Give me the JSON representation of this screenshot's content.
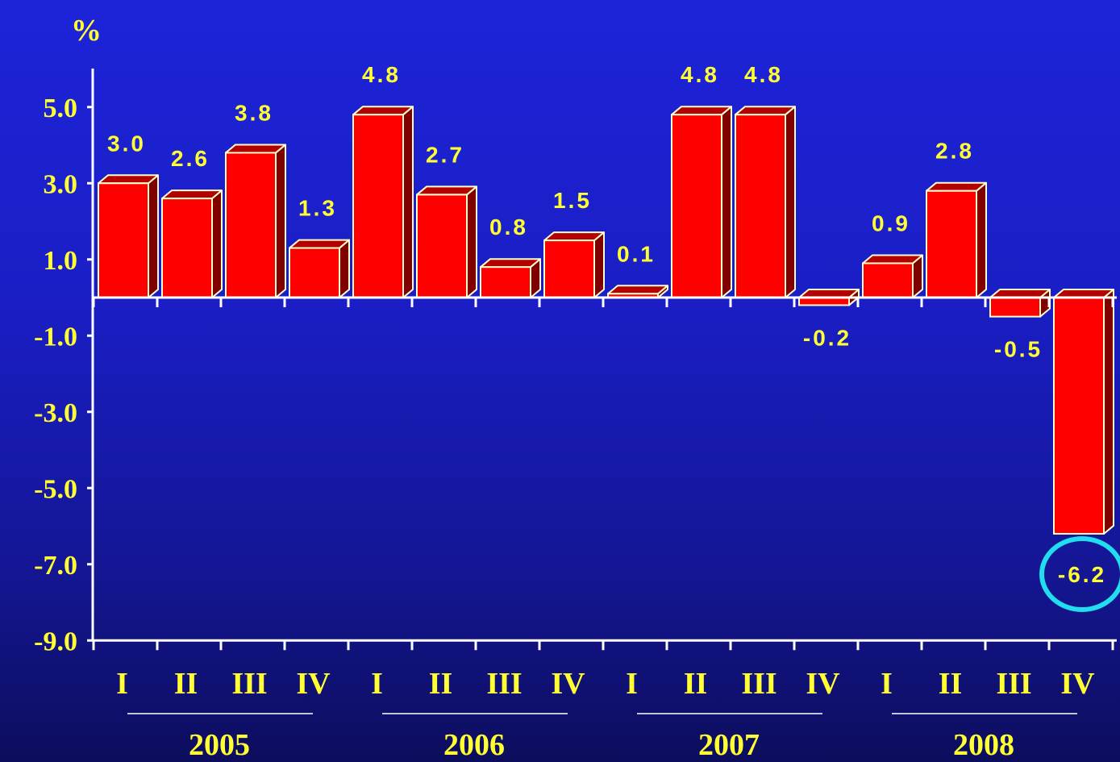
{
  "chart_data": {
    "type": "bar",
    "unit_label": "%",
    "categories": [
      "I",
      "II",
      "III",
      "IV",
      "I",
      "II",
      "III",
      "IV",
      "I",
      "II",
      "III",
      "IV",
      "I",
      "II",
      "III",
      "IV"
    ],
    "groups": [
      "2005",
      "2006",
      "2007",
      "2008"
    ],
    "values": [
      3.0,
      2.6,
      3.8,
      1.3,
      4.8,
      2.7,
      0.8,
      1.5,
      0.1,
      4.8,
      4.8,
      -0.2,
      0.9,
      2.8,
      -0.5,
      -6.2
    ],
    "data_labels": [
      "3.0",
      "2.6",
      "3.8",
      "1.3",
      "4.8",
      "2.7",
      "0.8",
      "1.5",
      "0.1",
      "4.8",
      "4.8",
      "-0.2",
      "0.9",
      "2.8",
      "-0.5",
      "-6.2"
    ],
    "yticks": [
      "5.0",
      "3.0",
      "1.0",
      "-1.0",
      "-3.0",
      "-5.0",
      "-7.0",
      "-9.0"
    ],
    "ytick_values": [
      5,
      3,
      1,
      -1,
      -3,
      -5,
      -7,
      -9
    ],
    "ylim": [
      -9,
      6
    ],
    "highlighted_label": "-6.2",
    "colors": {
      "bar_front": "#ff0000",
      "bar_side": "#800000",
      "bar_top": "#b30000",
      "bar_outline": "#ffffcc",
      "text": "#ffff33",
      "axis": "#ffffff",
      "highlight_circle": "#22ddee"
    }
  }
}
